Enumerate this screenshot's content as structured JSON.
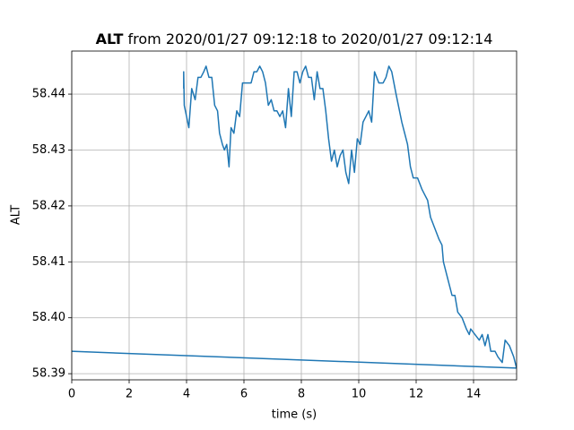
{
  "chart_data": {
    "type": "line",
    "title": {
      "bold": "ALT",
      "rest": "from 2020/01/27 09:12:18 to 2020/01/27 09:12:14"
    },
    "xlabel": "time (s)",
    "ylabel": "ALT",
    "xlim": [
      0,
      15.5
    ],
    "ylim": [
      58.3889,
      58.4477
    ],
    "xticks": [
      0,
      2,
      4,
      6,
      8,
      10,
      12,
      14
    ],
    "yticks": [
      58.39,
      {
        "value": 58.4,
        "label": "58.40"
      },
      58.41,
      58.42,
      58.43,
      58.44
    ],
    "grid": true,
    "series": [
      {
        "name": "ALT",
        "color": "#1f77b4",
        "x": [
          3.9,
          3.9,
          3.92,
          4.0,
          4.08,
          4.18,
          4.3,
          4.4,
          4.5,
          4.6,
          4.68,
          4.78,
          4.88,
          4.98,
          5.08,
          5.15,
          5.25,
          5.32,
          5.4,
          5.48,
          5.55,
          5.65,
          5.75,
          5.85,
          5.95,
          6.1,
          6.25,
          6.35,
          6.45,
          6.55,
          6.65,
          6.75,
          6.85,
          6.95,
          7.05,
          7.15,
          7.25,
          7.35,
          7.45,
          7.55,
          7.65,
          7.75,
          7.85,
          7.95,
          8.05,
          8.15,
          8.25,
          8.35,
          8.45,
          8.55,
          8.65,
          8.75,
          8.85,
          8.95,
          9.05,
          9.15,
          9.25,
          9.35,
          9.45,
          9.55,
          9.65,
          9.75,
          9.85,
          9.95,
          10.05,
          10.15,
          10.25,
          10.35,
          10.45,
          10.55,
          10.7,
          10.85,
          10.95,
          11.05,
          11.15,
          11.3,
          11.5,
          11.7,
          11.8,
          11.9,
          12.05,
          12.2,
          12.3,
          12.4,
          12.5,
          12.65,
          12.8,
          12.9,
          12.95,
          13.1,
          13.25,
          13.35,
          13.45,
          13.6,
          13.75,
          13.85,
          13.9,
          14.05,
          14.2,
          14.3,
          14.4,
          14.5,
          14.6,
          14.75,
          14.85,
          15.0,
          15.1,
          15.25,
          15.4,
          15.5,
          0
        ],
        "values": [
          58.441,
          58.444,
          58.438,
          58.436,
          58.434,
          58.441,
          58.439,
          58.443,
          58.443,
          58.444,
          58.445,
          58.443,
          58.443,
          58.438,
          58.437,
          58.433,
          58.431,
          58.43,
          58.431,
          58.427,
          58.434,
          58.433,
          58.437,
          58.436,
          58.442,
          58.442,
          58.442,
          58.444,
          58.444,
          58.445,
          58.444,
          58.442,
          58.438,
          58.439,
          58.437,
          58.437,
          58.436,
          58.437,
          58.434,
          58.441,
          58.436,
          58.444,
          58.444,
          58.442,
          58.444,
          58.445,
          58.443,
          58.443,
          58.439,
          58.444,
          58.441,
          58.441,
          58.437,
          58.432,
          58.428,
          58.43,
          58.427,
          58.429,
          58.43,
          58.426,
          58.424,
          58.43,
          58.426,
          58.432,
          58.431,
          58.435,
          58.436,
          58.437,
          58.435,
          58.444,
          58.442,
          58.442,
          58.443,
          58.445,
          58.444,
          58.44,
          58.435,
          58.431,
          58.427,
          58.425,
          58.425,
          58.423,
          58.422,
          58.421,
          58.418,
          58.416,
          58.414,
          58.413,
          58.41,
          58.407,
          58.404,
          58.404,
          58.401,
          58.4,
          58.398,
          58.397,
          58.398,
          58.397,
          58.396,
          58.397,
          58.395,
          58.397,
          58.394,
          58.394,
          58.393,
          58.392,
          58.396,
          58.395,
          58.393,
          58.391,
          58.394
        ]
      }
    ]
  }
}
